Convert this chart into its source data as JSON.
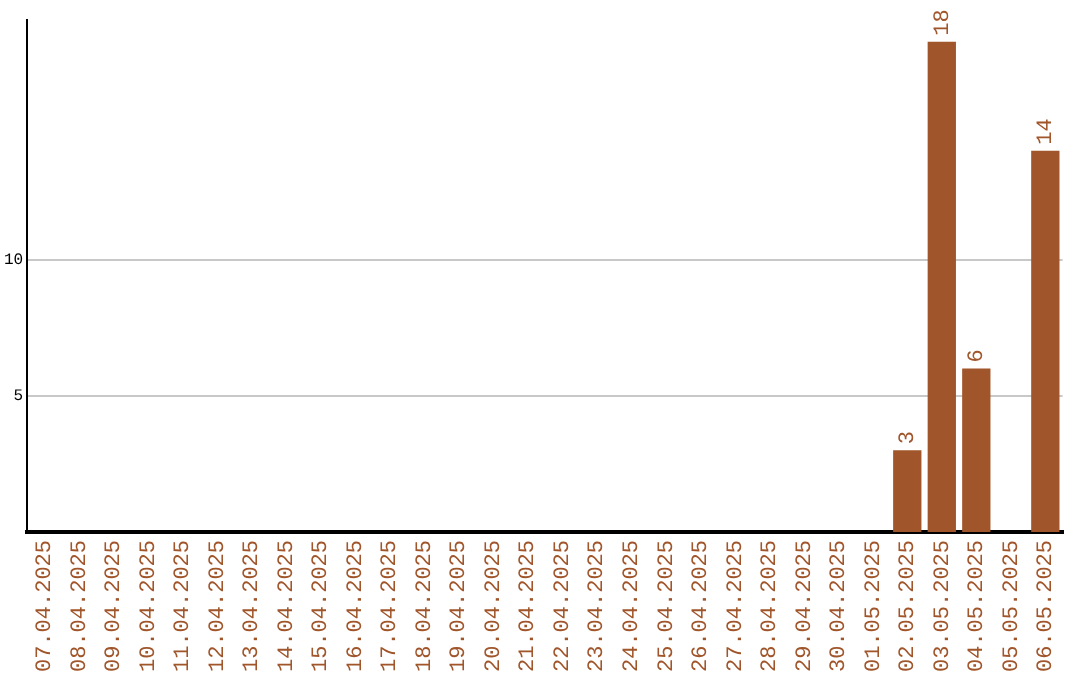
{
  "chart_data": {
    "type": "bar",
    "categories": [
      "07.04.2025",
      "08.04.2025",
      "09.04.2025",
      "10.04.2025",
      "11.04.2025",
      "12.04.2025",
      "13.04.2025",
      "14.04.2025",
      "15.04.2025",
      "16.04.2025",
      "17.04.2025",
      "18.04.2025",
      "19.04.2025",
      "20.04.2025",
      "21.04.2025",
      "22.04.2025",
      "23.04.2025",
      "24.04.2025",
      "25.04.2025",
      "26.04.2025",
      "27.04.2025",
      "28.04.2025",
      "29.04.2025",
      "30.04.2025",
      "01.05.2025",
      "02.05.2025",
      "03.05.2025",
      "04.05.2025",
      "05.05.2025",
      "06.05.2025"
    ],
    "values": [
      0,
      0,
      0,
      0,
      0,
      0,
      0,
      0,
      0,
      0,
      0,
      0,
      0,
      0,
      0,
      0,
      0,
      0,
      0,
      0,
      0,
      0,
      0,
      0,
      0,
      3,
      18,
      6,
      0,
      14
    ],
    "value_labels": [
      null,
      null,
      null,
      null,
      null,
      null,
      null,
      null,
      null,
      null,
      null,
      null,
      null,
      null,
      null,
      null,
      null,
      null,
      null,
      null,
      null,
      null,
      null,
      null,
      null,
      "3",
      "18",
      "6",
      null,
      "14"
    ],
    "color": "#a0552a",
    "ylim": [
      0,
      18.8
    ],
    "yticks": [
      5,
      10
    ],
    "grid": "y",
    "legend": false
  }
}
